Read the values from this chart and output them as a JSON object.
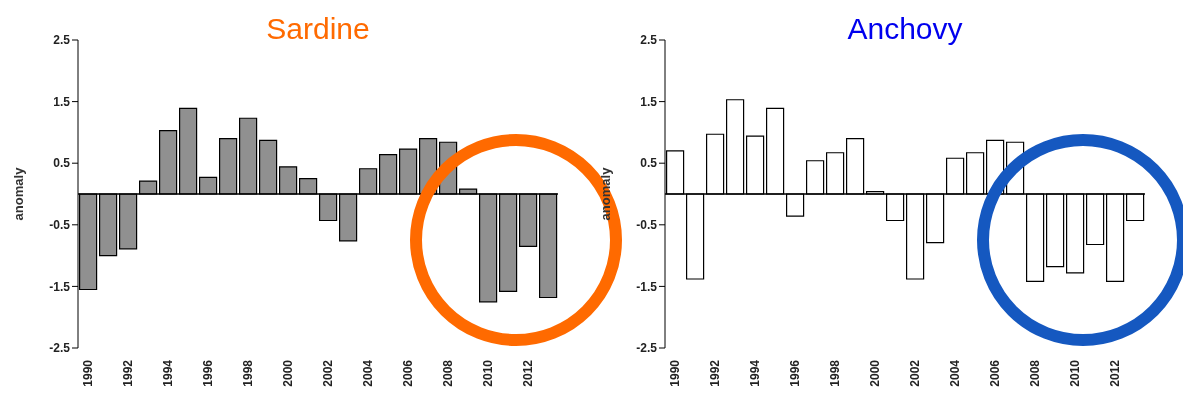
{
  "chart_data": [
    {
      "type": "bar",
      "title": "Sardine",
      "ylabel": "anomaly",
      "categories": [
        "1990",
        null,
        "1992",
        null,
        "1994",
        null,
        "1996",
        null,
        "1998",
        null,
        "2000",
        null,
        "2002",
        null,
        "2004",
        null,
        "2006",
        null,
        "2008",
        null,
        "2010",
        null,
        "2012",
        null
      ],
      "values": [
        -1.55,
        -1.0,
        -0.89,
        0.21,
        1.03,
        1.39,
        0.27,
        0.9,
        1.23,
        0.87,
        0.44,
        0.25,
        -0.43,
        -0.76,
        0.41,
        0.64,
        0.73,
        0.9,
        0.84,
        0.08,
        -1.75,
        -1.58,
        -0.85,
        -1.68
      ],
      "color": "#909090",
      "ylim": [
        -2.5,
        2.5
      ],
      "yticks": [
        -2.5,
        -1.5,
        -0.5,
        0.5,
        1.5,
        2.5
      ],
      "grid": false,
      "legend": false
    },
    {
      "type": "bar",
      "title": "Anchovy",
      "ylabel": "anomaly",
      "categories": [
        "1990",
        null,
        "1992",
        null,
        "1994",
        null,
        "1996",
        null,
        "1998",
        null,
        "2000",
        null,
        "2002",
        null,
        "2004",
        null,
        "2006",
        null,
        "2008",
        null,
        "2010",
        null,
        "2012",
        null
      ],
      "values": [
        0.7,
        -1.38,
        0.97,
        1.53,
        0.94,
        1.39,
        -0.36,
        0.54,
        0.67,
        0.9,
        0.04,
        -0.43,
        -1.38,
        -0.79,
        0.58,
        0.67,
        0.87,
        0.84,
        -1.42,
        -1.18,
        -1.28,
        -0.82,
        -1.42,
        -0.43
      ],
      "color": "#ffffff",
      "ylim": [
        -2.5,
        2.5
      ],
      "yticks": [
        -2.5,
        -1.5,
        -0.5,
        0.5,
        1.5,
        2.5
      ],
      "grid": false,
      "legend": false
    }
  ]
}
